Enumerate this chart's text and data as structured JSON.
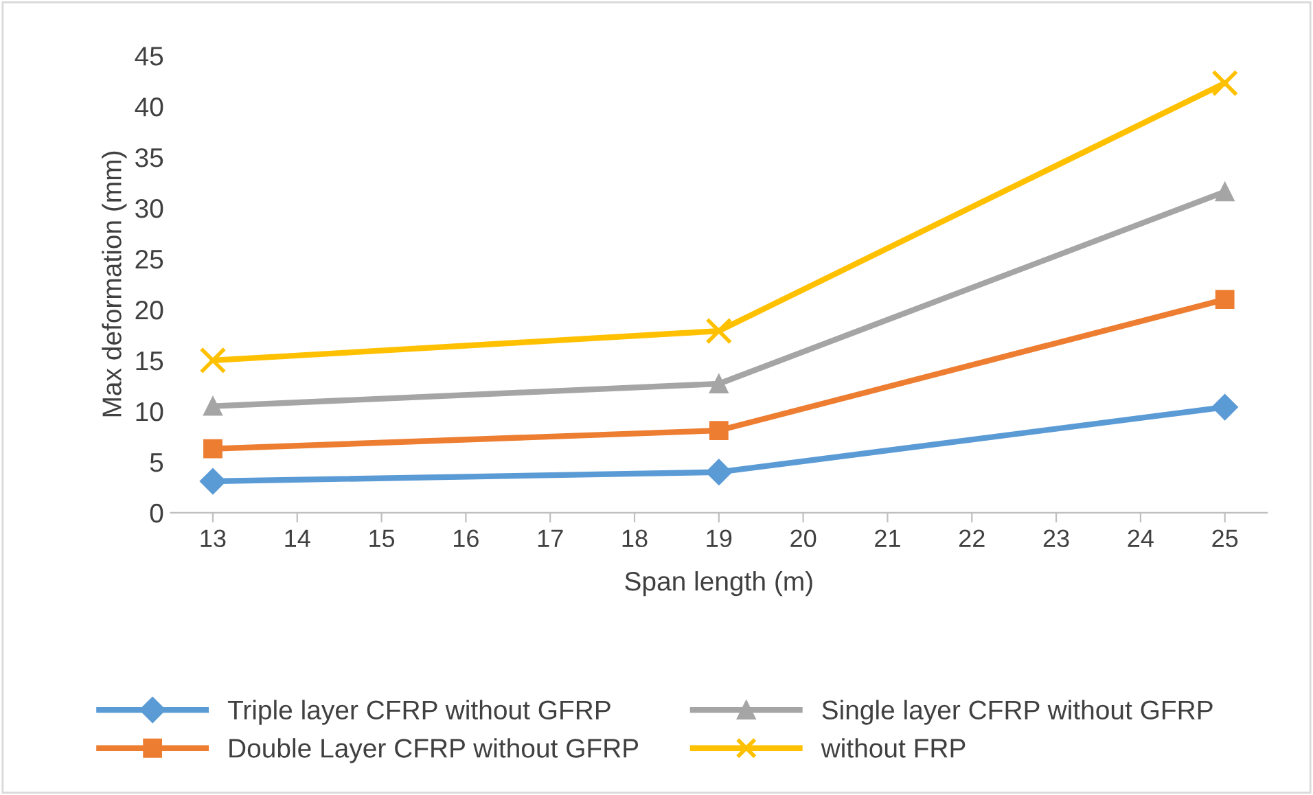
{
  "chart_data": {
    "type": "line",
    "xlabel": "Span length (m)",
    "ylabel": "Max deformation (mm)",
    "x": [
      13,
      19,
      25
    ],
    "series": [
      {
        "name": "Triple layer CFRP without GFRP",
        "color": "#5b9bd5",
        "marker": "diamond",
        "values": [
          3.1,
          4.0,
          10.4
        ]
      },
      {
        "name": "Double Layer CFRP without GFRP",
        "color": "#ed7d31",
        "marker": "square",
        "values": [
          6.3,
          8.1,
          21.0
        ]
      },
      {
        "name": "Single layer CFRP without GFRP",
        "color": "#a5a5a5",
        "marker": "triangle",
        "values": [
          10.5,
          12.7,
          31.6
        ]
      },
      {
        "name": "without FRP",
        "color": "#ffc000",
        "marker": "cross",
        "values": [
          15.0,
          17.9,
          42.3
        ]
      }
    ],
    "xlim": [
      12.5,
      25.5
    ],
    "xticks": [
      13,
      14,
      15,
      16,
      17,
      18,
      19,
      20,
      21,
      22,
      23,
      24,
      25
    ],
    "ylim": [
      0,
      45
    ],
    "yticks": [
      0,
      5,
      10,
      15,
      20,
      25,
      30,
      35,
      40,
      45
    ],
    "grid": false,
    "legend": "bottom"
  }
}
